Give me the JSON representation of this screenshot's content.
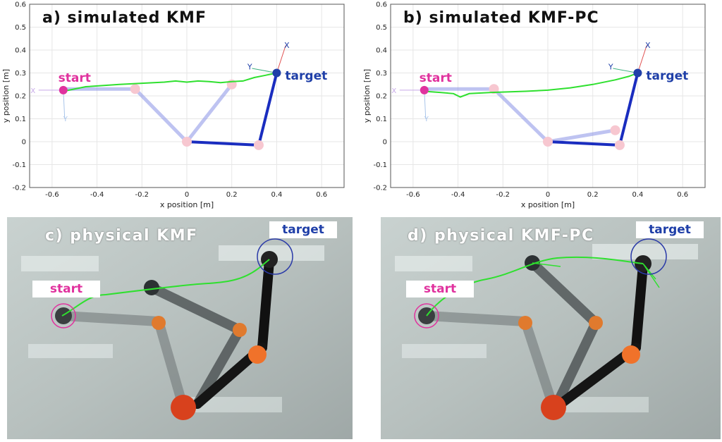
{
  "colors": {
    "trajectory": "#2fe02f",
    "arm_final": "#1a2dbf",
    "arm_ghost": "#8a93e6",
    "joint": "#f7c7d0",
    "start": "#e0329e",
    "target": "#1f3fa8"
  },
  "chart_data": [
    {
      "type": "line",
      "title": "a) simulated KMF",
      "xlabel": "x position [m]",
      "ylabel": "y position [m]",
      "xlim": [
        -0.7,
        0.7
      ],
      "ylim": [
        -0.2,
        0.6
      ],
      "xticks": [
        -0.6,
        -0.4,
        -0.2,
        0,
        0.2,
        0.4,
        0.6
      ],
      "yticks": [
        -0.2,
        -0.1,
        0,
        0.1,
        0.2,
        0.3,
        0.4,
        0.5,
        0.6
      ],
      "grid": true,
      "annotations": [
        {
          "text": "start",
          "x": -0.55,
          "y": 0.225
        },
        {
          "text": "target",
          "x": 0.4,
          "y": 0.295
        }
      ],
      "frame_labels": {
        "x": "X",
        "y": "Y"
      },
      "series": [
        {
          "points": [
            [
              -0.55,
              0.22
            ],
            [
              -0.45,
              0.24
            ],
            [
              -0.3,
              0.25
            ],
            [
              -0.2,
              0.255
            ],
            [
              -0.1,
              0.26
            ],
            [
              -0.05,
              0.265
            ],
            [
              0,
              0.26
            ],
            [
              0.05,
              0.265
            ],
            [
              0.1,
              0.262
            ],
            [
              0.15,
              0.258
            ],
            [
              0.2,
              0.262
            ],
            [
              0.25,
              0.265
            ],
            [
              0.3,
              0.28
            ],
            [
              0.35,
              0.29
            ],
            [
              0.4,
              0.3
            ]
          ]
        }
      ],
      "arm_ghost": [
        [
          -0.55,
          0.23
        ],
        [
          -0.23,
          0.23
        ],
        [
          0,
          0
        ],
        [
          0.2,
          0.25
        ]
      ],
      "arm_final": [
        [
          0,
          0
        ],
        [
          0.32,
          -0.015
        ],
        [
          0.4,
          0.3
        ]
      ]
    },
    {
      "type": "line",
      "title": "b) simulated KMF-PC",
      "xlabel": "x position [m]",
      "ylabel": "y position [m]",
      "xlim": [
        -0.7,
        0.7
      ],
      "ylim": [
        -0.2,
        0.6
      ],
      "xticks": [
        -0.6,
        -0.4,
        -0.2,
        0,
        0.2,
        0.4,
        0.6
      ],
      "yticks": [
        -0.2,
        -0.1,
        0,
        0.1,
        0.2,
        0.3,
        0.4,
        0.5,
        0.6
      ],
      "grid": true,
      "annotations": [
        {
          "text": "start",
          "x": -0.55,
          "y": 0.225
        },
        {
          "text": "target",
          "x": 0.4,
          "y": 0.295
        }
      ],
      "frame_labels": {
        "x": "X",
        "y": "Y"
      },
      "series": [
        {
          "points": [
            [
              -0.55,
              0.22
            ],
            [
              -0.48,
              0.215
            ],
            [
              -0.42,
              0.21
            ],
            [
              -0.39,
              0.195
            ],
            [
              -0.35,
              0.21
            ],
            [
              -0.25,
              0.215
            ],
            [
              -0.1,
              0.22
            ],
            [
              0,
              0.225
            ],
            [
              0.1,
              0.235
            ],
            [
              0.2,
              0.25
            ],
            [
              0.3,
              0.27
            ],
            [
              0.36,
              0.285
            ],
            [
              0.4,
              0.3
            ]
          ]
        }
      ],
      "arm_ghost": [
        [
          -0.55,
          0.23
        ],
        [
          -0.24,
          0.23
        ],
        [
          0,
          0
        ],
        [
          0.3,
          0.05
        ]
      ],
      "arm_final": [
        [
          0,
          0
        ],
        [
          0.32,
          -0.015
        ],
        [
          0.4,
          0.3
        ]
      ]
    }
  ],
  "photos": [
    {
      "title": "c) physical KMF",
      "start": "start",
      "target": "target"
    },
    {
      "title": "d) physical KMF-PC",
      "start": "start",
      "target": "target"
    }
  ]
}
